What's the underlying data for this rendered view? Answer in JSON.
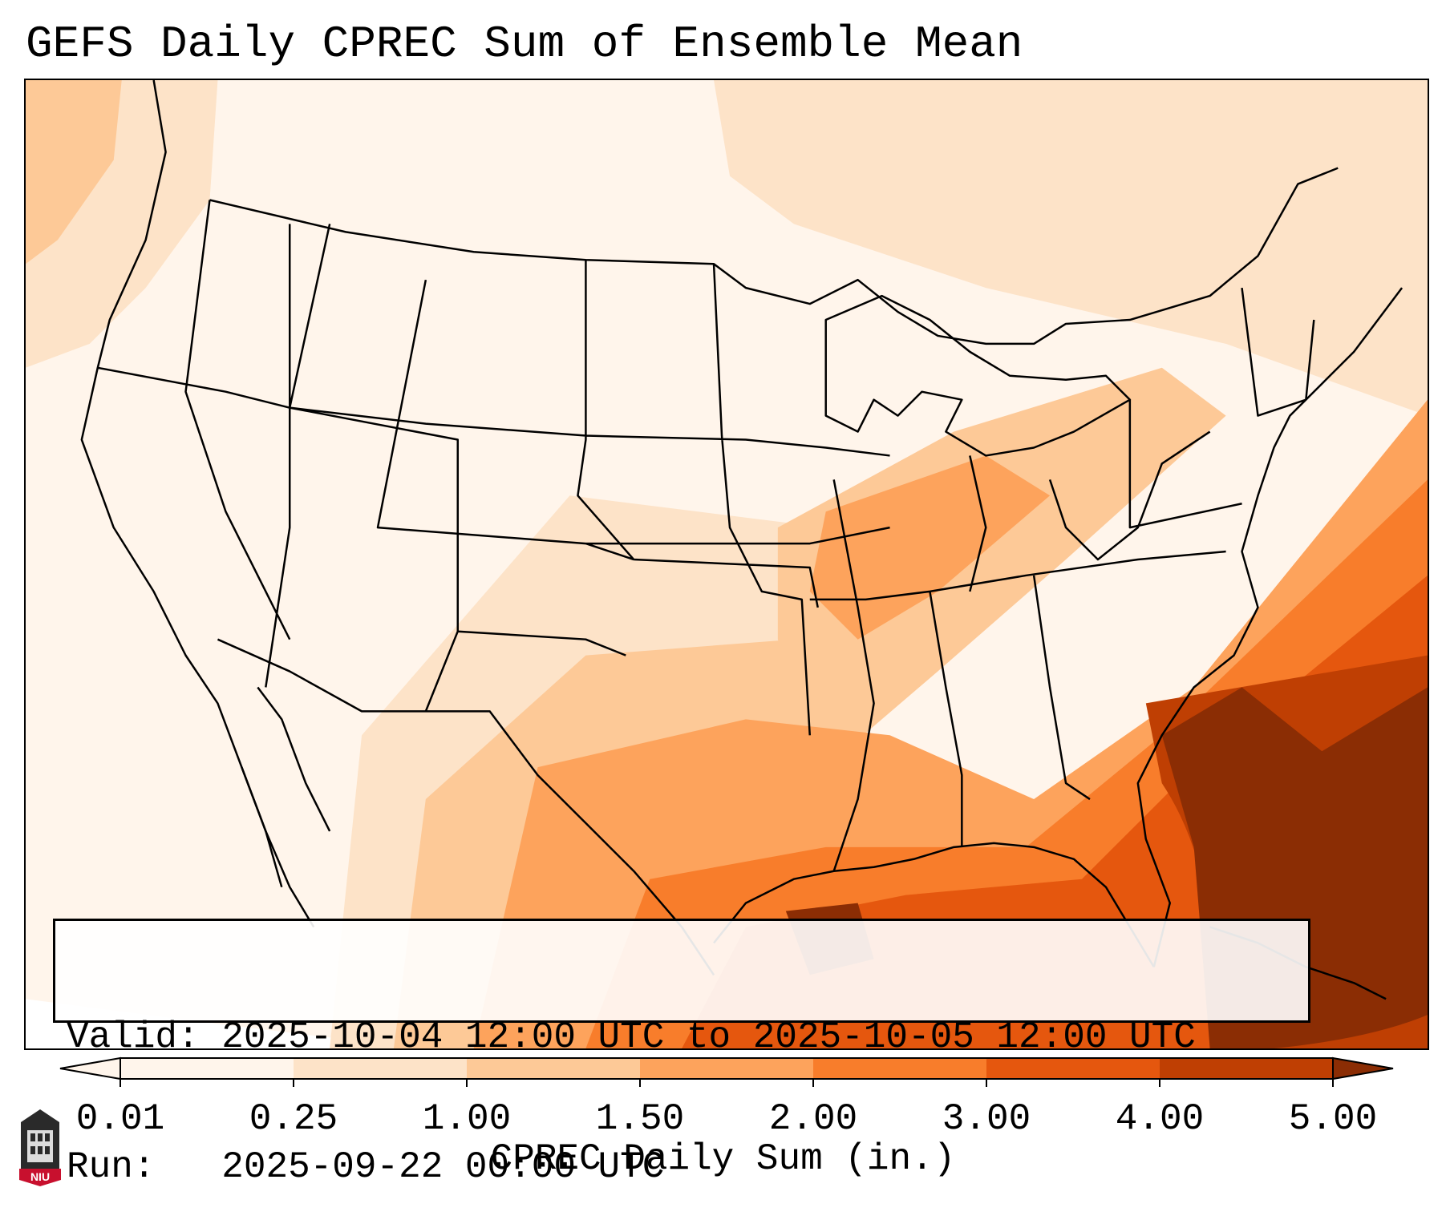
{
  "title": "GEFS Daily CPREC Sum of Ensemble Mean",
  "info": {
    "valid_label": "Valid:",
    "valid_value": "2025-10-04 12:00 UTC to 2025-10-05 12:00 UTC",
    "run_label": "Run:",
    "run_value": "2025-09-22 00:00 UTC"
  },
  "colorbar": {
    "label": "CPREC Daily Sum (in.)",
    "ticks": [
      "0.01",
      "0.25",
      "1.00",
      "1.50",
      "2.00",
      "3.00",
      "4.00",
      "5.00"
    ],
    "colors": [
      "#fff5eb",
      "#fde3c8",
      "#fdc997",
      "#fda35c",
      "#f87d2b",
      "#e5570e",
      "#bf3f03",
      "#8b2d04"
    ],
    "extend": "both"
  },
  "map": {
    "projection": "lambert-conformal-conus",
    "colors": {
      "background": "#fff5eb",
      "level1": "#fde3c8",
      "level2": "#fdc997",
      "level3": "#fda35c",
      "level4": "#f87d2b",
      "level5": "#e5570e",
      "level6": "#bf3f03",
      "level7": "#8b2d04",
      "borders": "#000000"
    }
  },
  "logo": {
    "text": "NIU",
    "icon": "university-tower-icon"
  }
}
